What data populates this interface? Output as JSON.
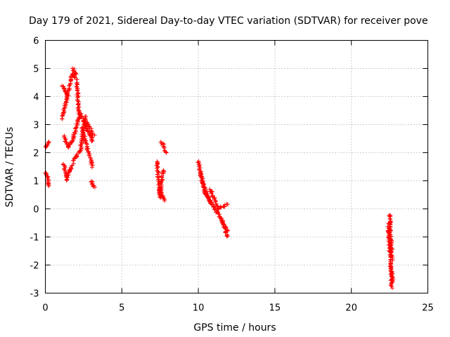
{
  "chart_data": {
    "type": "scatter",
    "title": "Day 179 of 2021, Sidereal Day-to-day VTEC variation (SDTVAR) for receiver pove",
    "xlabel": "GPS time / hours",
    "ylabel": "SDTVAR / TECUs",
    "xlim": [
      0,
      25
    ],
    "ylim": [
      -3,
      6
    ],
    "x_ticks": [
      0,
      5,
      10,
      15,
      20,
      25
    ],
    "y_ticks": [
      -3,
      -2,
      -1,
      0,
      1,
      2,
      3,
      4,
      5,
      6
    ],
    "grid": true,
    "grid_style": "dotted",
    "marker": "+",
    "marker_color": "#ff0000",
    "segments": [
      {
        "x": [
          0.0,
          0.25
        ],
        "y": [
          2.2,
          2.4
        ]
      },
      {
        "x": [
          0.0,
          0.2
        ],
        "y": [
          1.3,
          1.05
        ]
      },
      {
        "x": [
          0.15,
          0.2
        ],
        "y": [
          1.0,
          0.8
        ]
      },
      {
        "x": [
          1.1,
          1.75
        ],
        "y": [
          3.2,
          4.8
        ]
      },
      {
        "x": [
          1.75,
          2.05
        ],
        "y": [
          4.8,
          4.6
        ]
      },
      {
        "x": [
          1.8,
          2.05
        ],
        "y": [
          5.0,
          4.8
        ]
      },
      {
        "x": [
          2.05,
          2.2
        ],
        "y": [
          4.5,
          3.4
        ]
      },
      {
        "x": [
          1.1,
          1.5
        ],
        "y": [
          4.4,
          4.0
        ]
      },
      {
        "x": [
          1.2,
          1.5
        ],
        "y": [
          2.6,
          2.2
        ]
      },
      {
        "x": [
          1.5,
          1.8
        ],
        "y": [
          2.2,
          2.5
        ]
      },
      {
        "x": [
          1.8,
          2.3
        ],
        "y": [
          2.5,
          3.4
        ]
      },
      {
        "x": [
          2.3,
          2.6
        ],
        "y": [
          3.4,
          3.0
        ]
      },
      {
        "x": [
          2.6,
          3.1
        ],
        "y": [
          3.0,
          2.4
        ]
      },
      {
        "x": [
          1.2,
          1.4
        ],
        "y": [
          1.6,
          1.0
        ]
      },
      {
        "x": [
          1.4,
          1.8
        ],
        "y": [
          1.1,
          1.6
        ]
      },
      {
        "x": [
          1.8,
          2.3
        ],
        "y": [
          1.7,
          2.1
        ]
      },
      {
        "x": [
          2.3,
          2.6
        ],
        "y": [
          2.1,
          3.3
        ]
      },
      {
        "x": [
          2.4,
          2.8
        ],
        "y": [
          2.9,
          2.0
        ]
      },
      {
        "x": [
          2.8,
          3.1
        ],
        "y": [
          2.0,
          1.5
        ]
      },
      {
        "x": [
          2.6,
          3.2
        ],
        "y": [
          3.2,
          2.6
        ]
      },
      {
        "x": [
          3.0,
          3.2
        ],
        "y": [
          1.0,
          0.75
        ]
      },
      {
        "x": [
          7.3,
          7.5
        ],
        "y": [
          1.7,
          0.4
        ]
      },
      {
        "x": [
          7.5,
          7.7
        ],
        "y": [
          0.4,
          1.4
        ]
      },
      {
        "x": [
          7.4,
          7.8
        ],
        "y": [
          0.7,
          0.3
        ]
      },
      {
        "x": [
          7.6,
          7.9
        ],
        "y": [
          2.4,
          2.0
        ]
      },
      {
        "x": [
          10.0,
          10.3
        ],
        "y": [
          1.7,
          0.9
        ]
      },
      {
        "x": [
          10.1,
          10.5
        ],
        "y": [
          1.3,
          0.5
        ]
      },
      {
        "x": [
          10.3,
          10.8
        ],
        "y": [
          0.9,
          0.2
        ]
      },
      {
        "x": [
          10.5,
          11.2
        ],
        "y": [
          0.5,
          -0.1
        ]
      },
      {
        "x": [
          10.8,
          11.3
        ],
        "y": [
          0.7,
          0.0
        ]
      },
      {
        "x": [
          11.2,
          11.9
        ],
        "y": [
          -0.1,
          -0.8
        ]
      },
      {
        "x": [
          11.3,
          11.9
        ],
        "y": [
          0.0,
          0.15
        ]
      },
      {
        "x": [
          11.5,
          11.9
        ],
        "y": [
          -0.3,
          -1.0
        ]
      },
      {
        "x": [
          22.4,
          22.65
        ],
        "y": [
          -0.5,
          -2.8
        ]
      },
      {
        "x": [
          22.5,
          22.65
        ],
        "y": [
          -0.2,
          -1.8
        ]
      },
      {
        "x": [
          22.6,
          22.7
        ],
        "y": [
          -2.0,
          -2.6
        ]
      }
    ]
  }
}
